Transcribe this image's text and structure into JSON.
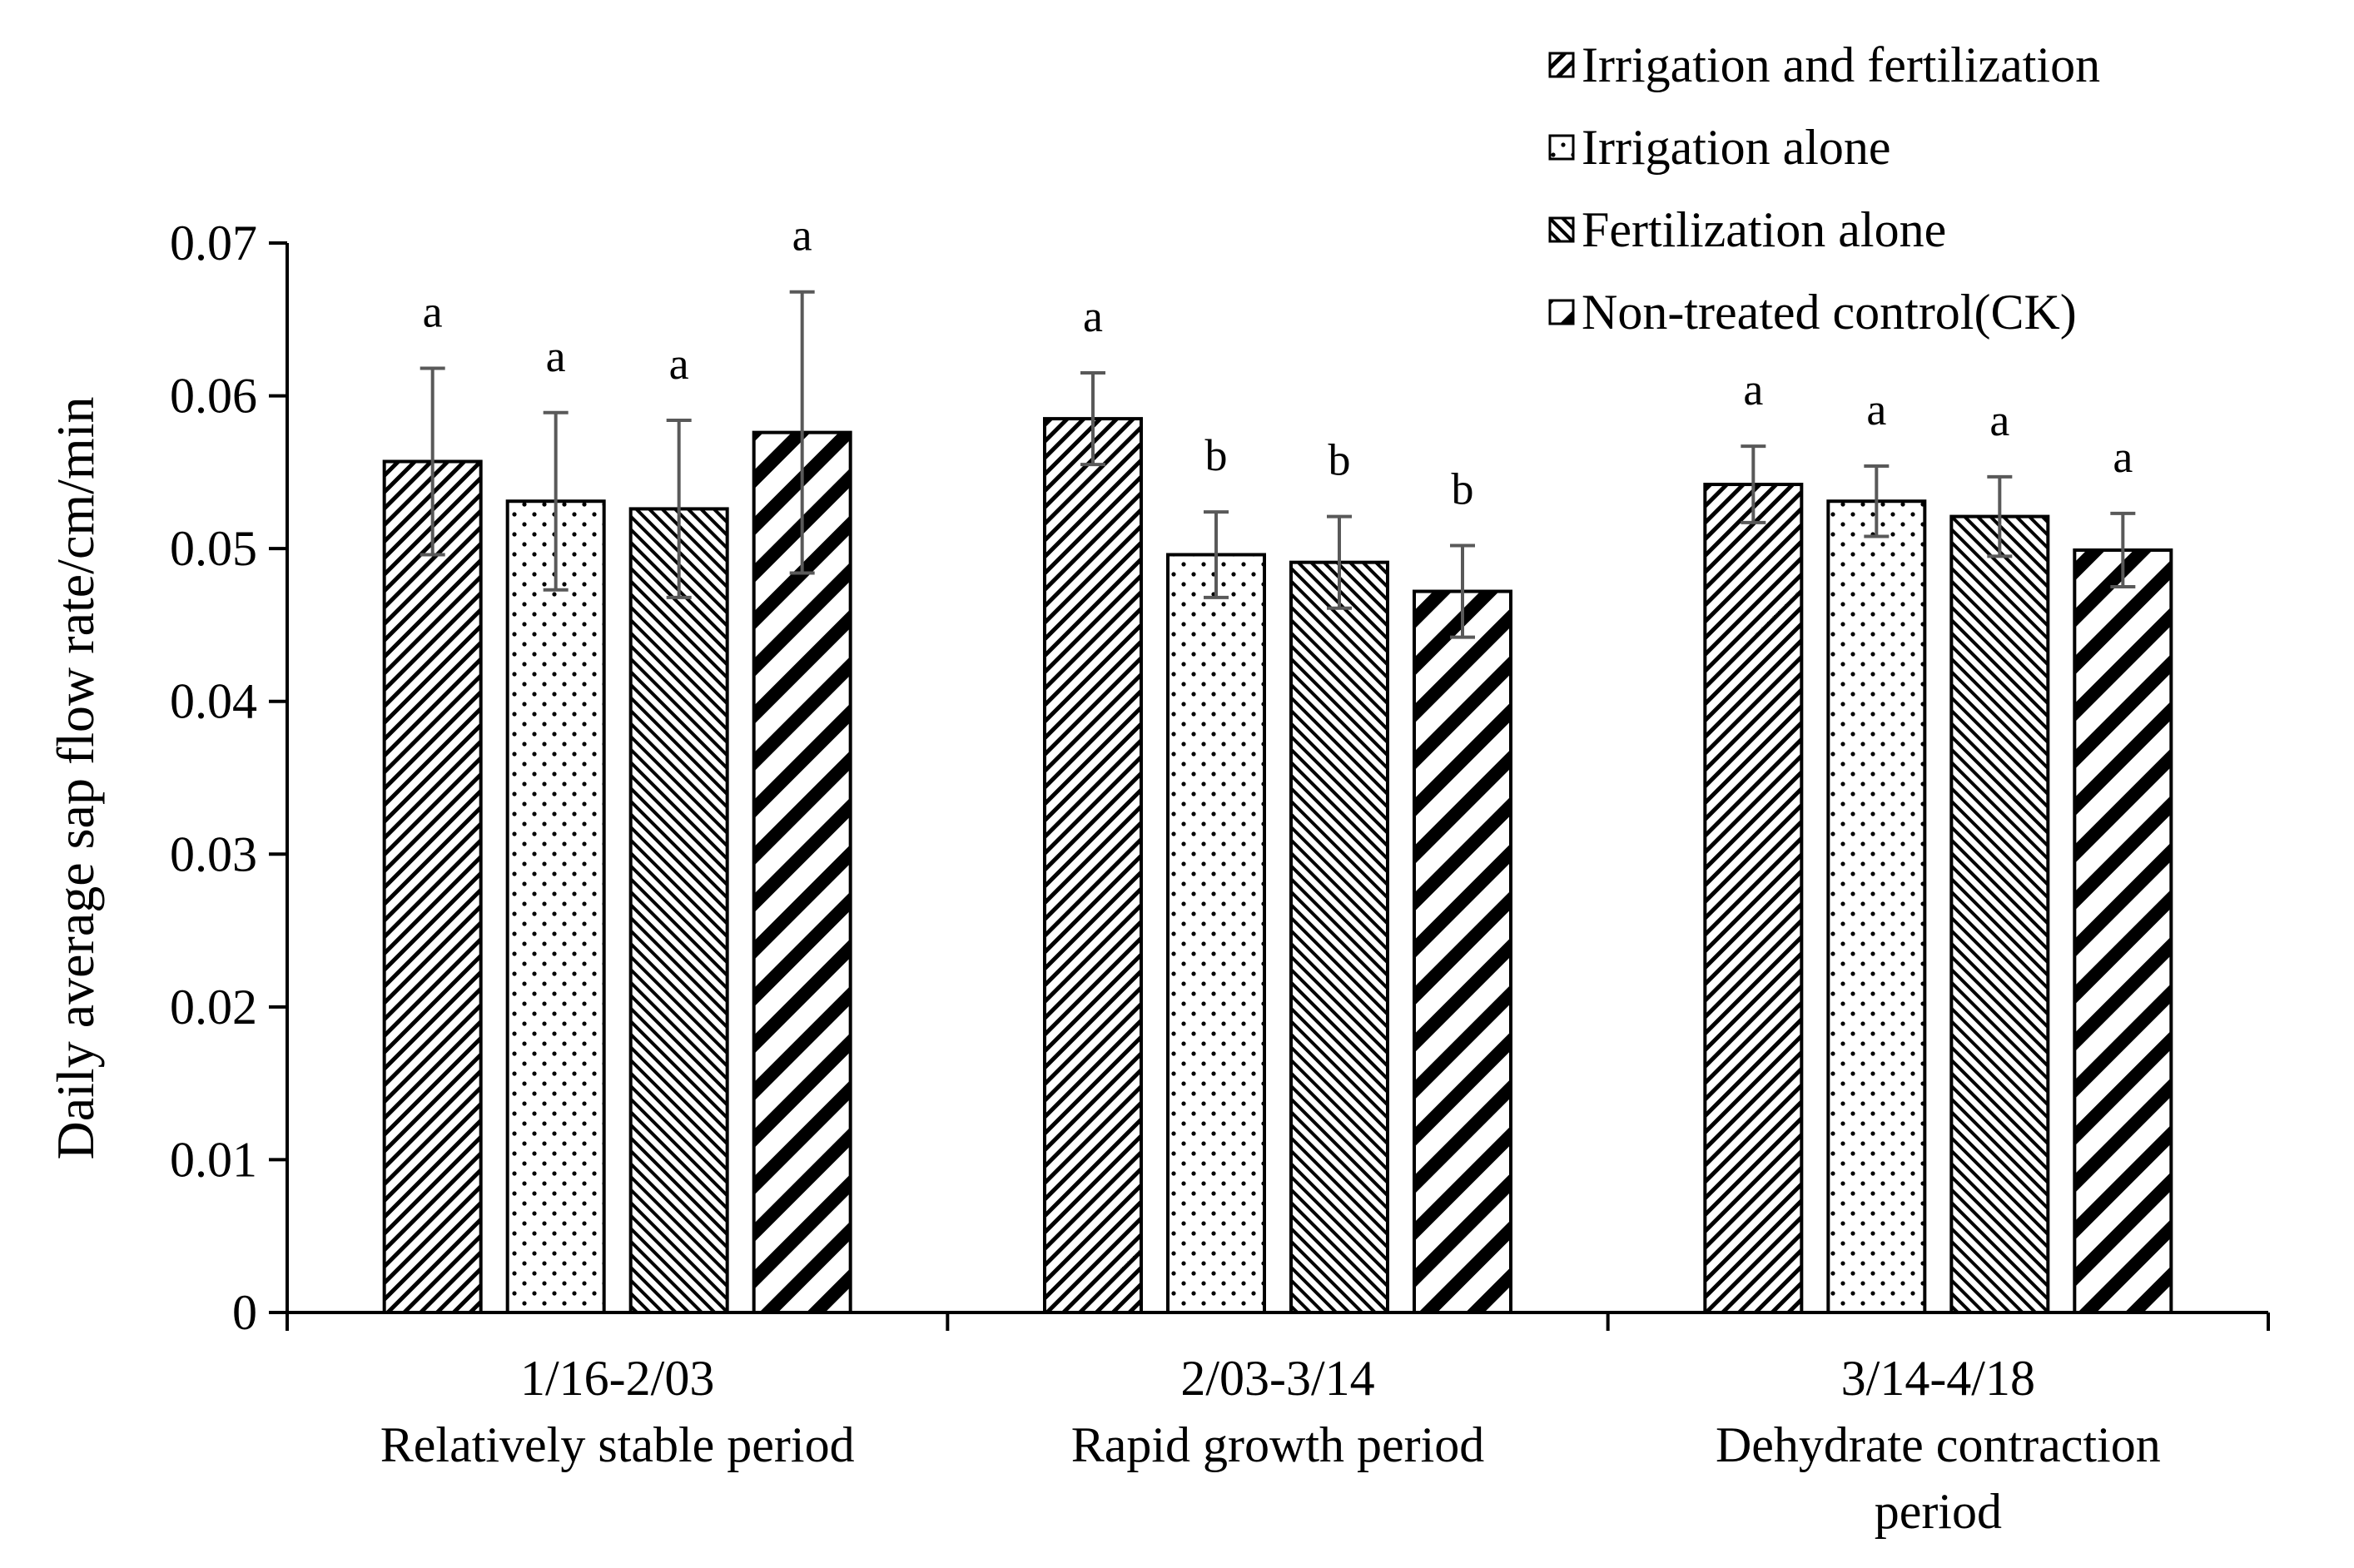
{
  "chart_data": {
    "type": "bar",
    "title": "",
    "xlabel": "",
    "ylabel": "Daily average sap flow rate/cm/min",
    "ylim": [
      0,
      0.07
    ],
    "yticks": [
      "0",
      "0.01",
      "0.02",
      "0.03",
      "0.04",
      "0.05",
      "0.06",
      "0.07"
    ],
    "grid": false,
    "legend_position": "top-right",
    "categories": [
      {
        "line1": "1/16-2/03",
        "line2": "Relatively stable period",
        "line3": ""
      },
      {
        "line1": "2/03-3/14",
        "line2": "Rapid growth period",
        "line3": ""
      },
      {
        "line1": "3/14-4/18",
        "line2": "Dehydrate contraction",
        "line3": "period"
      }
    ],
    "series": [
      {
        "name": "Irrigation and fertilization",
        "pattern": "diag-fine",
        "values": [
          0.0557,
          0.0585,
          0.0542
        ],
        "errors": [
          0.0061,
          0.003,
          0.0025
        ],
        "letters": [
          "a",
          "a",
          "a"
        ]
      },
      {
        "name": "Irrigation alone",
        "pattern": "dots",
        "values": [
          0.0531,
          0.0496,
          0.0531
        ],
        "errors": [
          0.0058,
          0.0028,
          0.0023
        ],
        "letters": [
          "a",
          "b",
          "a"
        ]
      },
      {
        "name": "Fertilization alone",
        "pattern": "diag-medium",
        "values": [
          0.0526,
          0.0491,
          0.0521
        ],
        "errors": [
          0.0058,
          0.003,
          0.0026
        ],
        "letters": [
          "a",
          "b",
          "a"
        ]
      },
      {
        "name": "Non-treated control(CK)",
        "pattern": "diag-bold",
        "values": [
          0.0576,
          0.0472,
          0.0499
        ],
        "errors": [
          0.0092,
          0.003,
          0.0024
        ],
        "letters": [
          "a",
          "b",
          "a"
        ]
      }
    ]
  }
}
